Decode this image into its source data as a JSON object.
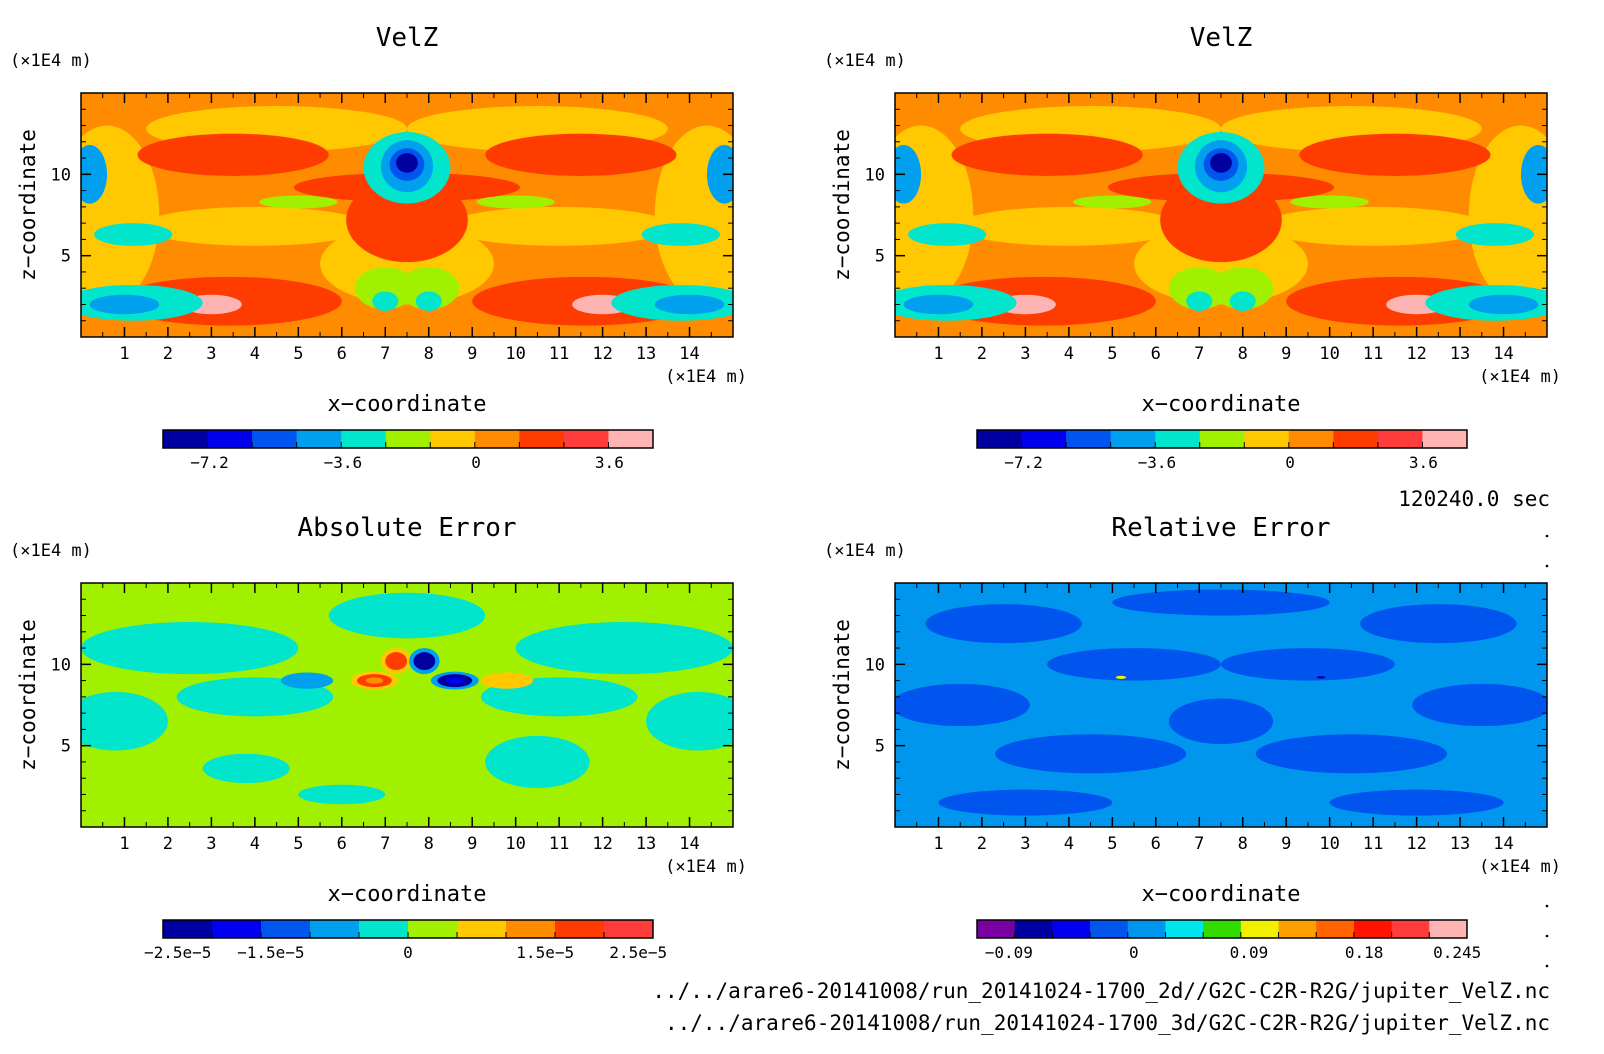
{
  "panels": [
    {
      "title": "VelZ",
      "unit_label": "(×1E4 m)",
      "xlabel": "x−coordinate",
      "ylabel": "z−coordinate",
      "x_unit": "(×1E4 m)",
      "x_ticks": [
        "1",
        "2",
        "3",
        "4",
        "5",
        "6",
        "7",
        "8",
        "9",
        "10",
        "11",
        "12",
        "13",
        "14"
      ],
      "y_ticks": [
        "5",
        "10"
      ],
      "colorbar": {
        "colors": [
          "#0000a0",
          "#0000ee",
          "#0055ee",
          "#00a0ee",
          "#00e5cc",
          "#a0f000",
          "#ffc800",
          "#ff8c00",
          "#ff3c00",
          "#ff3c3c",
          "#ffb4b4"
        ],
        "labels": [
          "−7.2",
          "−3.6",
          "0",
          "3.6"
        ]
      }
    },
    {
      "title": "VelZ",
      "unit_label": "(×1E4 m)",
      "xlabel": "x−coordinate",
      "ylabel": "z−coordinate",
      "x_unit": "(×1E4 m)",
      "x_ticks": [
        "1",
        "2",
        "3",
        "4",
        "5",
        "6",
        "7",
        "8",
        "9",
        "10",
        "11",
        "12",
        "13",
        "14"
      ],
      "y_ticks": [
        "5",
        "10"
      ],
      "colorbar": {
        "colors": [
          "#0000a0",
          "#0000ee",
          "#0055ee",
          "#00a0ee",
          "#00e5cc",
          "#a0f000",
          "#ffc800",
          "#ff8c00",
          "#ff3c00",
          "#ff3c3c",
          "#ffb4b4"
        ],
        "labels": [
          "−7.2",
          "−3.6",
          "0",
          "3.6"
        ]
      }
    },
    {
      "title": "Absolute Error",
      "unit_label": "(×1E4 m)",
      "xlabel": "x−coordinate",
      "ylabel": "z−coordinate",
      "x_unit": "(×1E4 m)",
      "x_ticks": [
        "1",
        "2",
        "3",
        "4",
        "5",
        "6",
        "7",
        "8",
        "9",
        "10",
        "11",
        "12",
        "13",
        "14"
      ],
      "y_ticks": [
        "5",
        "10"
      ],
      "colorbar": {
        "colors": [
          "#0000a0",
          "#0000ee",
          "#0055ee",
          "#00a0ee",
          "#00e5cc",
          "#a0f000",
          "#ffc800",
          "#ff8c00",
          "#ff3c00",
          "#ff3c3c"
        ],
        "labels": [
          "−2.5e−5",
          "−1.5e−5",
          "0",
          "1.5e−5",
          "2.5e−5"
        ]
      }
    },
    {
      "title": "Relative Error",
      "unit_label": "(×1E4 m)",
      "xlabel": "x−coordinate",
      "ylabel": "z−coordinate",
      "x_unit": "(×1E4 m)",
      "x_ticks": [
        "1",
        "2",
        "3",
        "4",
        "5",
        "6",
        "7",
        "8",
        "9",
        "10",
        "11",
        "12",
        "13",
        "14"
      ],
      "y_ticks": [
        "5",
        "10"
      ],
      "colorbar": {
        "colors": [
          "#7800a0",
          "#0000a0",
          "#0000ee",
          "#0055ee",
          "#0096ee",
          "#00e5ee",
          "#32dc00",
          "#f0f000",
          "#ffa000",
          "#ff6400",
          "#ff1400",
          "#ff3c3c",
          "#ffb4b4"
        ],
        "labels": [
          "−0.09",
          "0",
          "0.09",
          "0.18",
          "0.245"
        ]
      }
    }
  ],
  "time_label": "120240.0 sec",
  "file_paths": [
    "../../arare6-20141008/run_20141024-1700_2d//G2C-C2R-R2G/jupiter_VelZ.nc",
    "../../arare6-20141008/run_20141024-1700_3d/G2C-C2R-R2G/jupiter_VelZ.nc"
  ],
  "chart_data": [
    {
      "type": "heatmap",
      "title": "VelZ",
      "xlabel": "x−coordinate",
      "ylabel": "z−coordinate",
      "x_unit": "(×1E4 m)",
      "y_unit": "(×1E4 m)",
      "xlim": [
        0,
        15
      ],
      "ylim": [
        0,
        15
      ],
      "colorbar_labels": [
        -7.2,
        -3.6,
        0,
        3.6
      ],
      "features": [
        {
          "kind": "min",
          "x": 7.5,
          "z": 10.5,
          "value": -7.2
        },
        {
          "kind": "max",
          "x": 3.0,
          "z": 2.0,
          "value": 3.6
        },
        {
          "kind": "max",
          "x": 12.0,
          "z": 2.0,
          "value": 3.6
        }
      ]
    },
    {
      "type": "heatmap",
      "title": "VelZ",
      "xlabel": "x−coordinate",
      "ylabel": "z−coordinate",
      "x_unit": "(×1E4 m)",
      "y_unit": "(×1E4 m)",
      "xlim": [
        0,
        15
      ],
      "ylim": [
        0,
        15
      ],
      "colorbar_labels": [
        -7.2,
        -3.6,
        0,
        3.6
      ],
      "features": [
        {
          "kind": "min",
          "x": 7.5,
          "z": 10.5,
          "value": -7.2
        },
        {
          "kind": "max",
          "x": 3.0,
          "z": 2.0,
          "value": 3.6
        },
        {
          "kind": "max",
          "x": 12.0,
          "z": 2.0,
          "value": 3.6
        }
      ]
    },
    {
      "type": "heatmap",
      "title": "Absolute Error",
      "xlabel": "x−coordinate",
      "ylabel": "z−coordinate",
      "x_unit": "(×1E4 m)",
      "y_unit": "(×1E4 m)",
      "xlim": [
        0,
        15
      ],
      "ylim": [
        0,
        15
      ],
      "colorbar_labels": [
        -2.5e-05,
        -1.5e-05,
        0,
        1.5e-05,
        2.5e-05
      ],
      "features": [
        {
          "kind": "max",
          "x": 7.2,
          "z": 10.2,
          "value": 2.5e-05
        },
        {
          "kind": "max",
          "x": 6.7,
          "z": 9.0,
          "value": 2e-05
        },
        {
          "kind": "min",
          "x": 7.9,
          "z": 10.2,
          "value": -2.5e-05
        },
        {
          "kind": "min",
          "x": 8.6,
          "z": 9.0,
          "value": -2e-05
        }
      ]
    },
    {
      "type": "heatmap",
      "title": "Relative Error",
      "xlabel": "x−coordinate",
      "ylabel": "z−coordinate",
      "x_unit": "(×1E4 m)",
      "y_unit": "(×1E4 m)",
      "xlim": [
        0,
        15
      ],
      "ylim": [
        0,
        15
      ],
      "colorbar_labels": [
        -0.09,
        0,
        0.09,
        0.18,
        0.245
      ]
    }
  ]
}
